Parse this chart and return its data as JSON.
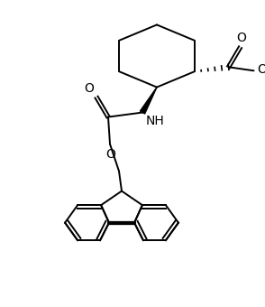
{
  "background_color": "#ffffff",
  "line_color": "#000000",
  "lw": 1.4,
  "figsize": [
    2.94,
    3.4
  ],
  "dpi": 100,
  "xlim": [
    0,
    294
  ],
  "ylim": [
    0,
    340
  ]
}
